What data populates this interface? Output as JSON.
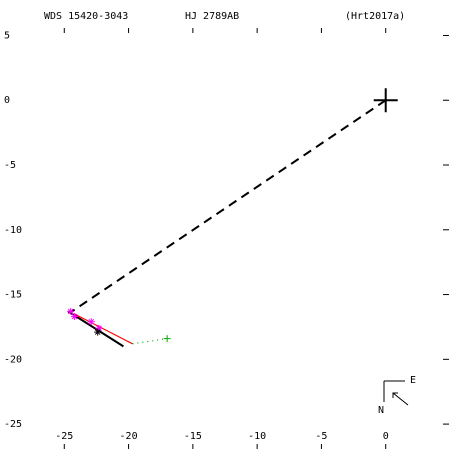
{
  "chart_data": {
    "type": "scatter",
    "header": [
      "WDS 15420-3043",
      "HJ 2789AB",
      "(Hrt2017a)"
    ],
    "xlim": [
      -30,
      5
    ],
    "ylim": [
      -27,
      5.5
    ],
    "xticks": [
      -25,
      -20,
      -15,
      -10,
      -5,
      0
    ],
    "yticks": [
      5,
      0,
      -5,
      -10,
      -15,
      -20,
      -25
    ],
    "grid": false,
    "compass": [
      "N",
      "E"
    ],
    "series": [
      {
        "color": "#000000",
        "style": "dashed",
        "x": [
          0,
          -24.55
        ],
        "y": [
          0,
          -16.4
        ]
      },
      {
        "color": "#000000",
        "style": "solid",
        "x": [
          -24.7,
          -20.4
        ],
        "y": [
          -16.3,
          -19.0
        ]
      },
      {
        "color": "#ff0000",
        "style": "solid",
        "x": [
          -24.2,
          -19.7
        ],
        "y": [
          -16.5,
          -18.8
        ]
      },
      {
        "color": "#00aa00",
        "style": "dotted",
        "x": [
          -19.7,
          -17.0
        ],
        "y": [
          -18.8,
          -18.4
        ]
      },
      {
        "color": "#00aa00",
        "style": "marker",
        "marker": "+",
        "x": [
          -17.0
        ],
        "y": [
          -18.4
        ]
      },
      {
        "color": "#000000",
        "style": "marker",
        "marker": "big+",
        "x": [
          0
        ],
        "y": [
          0
        ]
      },
      {
        "color": "#ff00ff",
        "style": "marker",
        "marker": "*",
        "x": [
          -24.5,
          -24.2,
          -22.9,
          -22.3
        ],
        "y": [
          -16.3,
          -16.7,
          -17.1,
          -17.6
        ]
      },
      {
        "color": "#000000",
        "style": "marker",
        "marker": "*",
        "x": [
          -22.4
        ],
        "y": [
          -17.9
        ]
      }
    ]
  }
}
